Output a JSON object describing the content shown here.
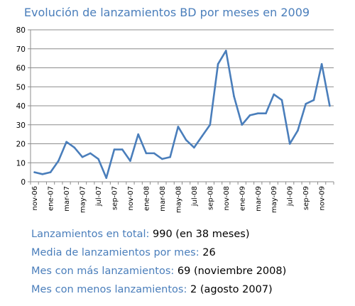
{
  "chart_data": {
    "type": "line",
    "title": "Evolución de lanzamientos BD por meses en 2009",
    "ylim": [
      0,
      80
    ],
    "yticks": [
      0,
      10,
      20,
      30,
      40,
      50,
      60,
      70,
      80
    ],
    "grid": true,
    "legend": "none",
    "line_color": "#4a7ebb",
    "x": [
      "nov-06",
      "dic-06",
      "ene-07",
      "feb-07",
      "mar-07",
      "abr-07",
      "may-07",
      "jun-07",
      "jul-07",
      "ago-07",
      "sep-07",
      "oct-07",
      "nov-07",
      "dic-07",
      "ene-08",
      "feb-08",
      "mar-08",
      "abr-08",
      "may-08",
      "jun-08",
      "jul-08",
      "ago-08",
      "sep-08",
      "oct-08",
      "nov-08",
      "dic-08",
      "ene-09",
      "feb-09",
      "mar-09",
      "abr-09",
      "may-09",
      "jun-09",
      "jul-09",
      "ago-09",
      "sep-09",
      "oct-09",
      "nov-09",
      "dic-09"
    ],
    "xtick_labels": [
      "nov-06",
      "ene-07",
      "mar-07",
      "may-07",
      "jul-07",
      "sep-07",
      "nov-07",
      "ene-08",
      "mar-08",
      "may-08",
      "jul-08",
      "sep-08",
      "nov-08",
      "ene-09",
      "mar-09",
      "may-09",
      "jul-09",
      "sep-09",
      "nov-09"
    ],
    "values": [
      5,
      4,
      5,
      11,
      21,
      18,
      13,
      15,
      12,
      2,
      17,
      17,
      11,
      25,
      15,
      15,
      12,
      13,
      29,
      22,
      18,
      24,
      30,
      62,
      69,
      45,
      30,
      35,
      36,
      36,
      46,
      43,
      20,
      27,
      41,
      43,
      62,
      40
    ]
  },
  "stats": [
    {
      "label": "Lanzamientos en total:",
      "value": "990 (en 38 meses)"
    },
    {
      "label": "Media de lanzamientos por mes:",
      "value": "26"
    },
    {
      "label": "Mes con más lanzamientos:",
      "value": "69 (noviembre 2008)"
    },
    {
      "label": "Mes con menos lanzamientos:",
      "value": "2 (agosto 2007)"
    }
  ]
}
